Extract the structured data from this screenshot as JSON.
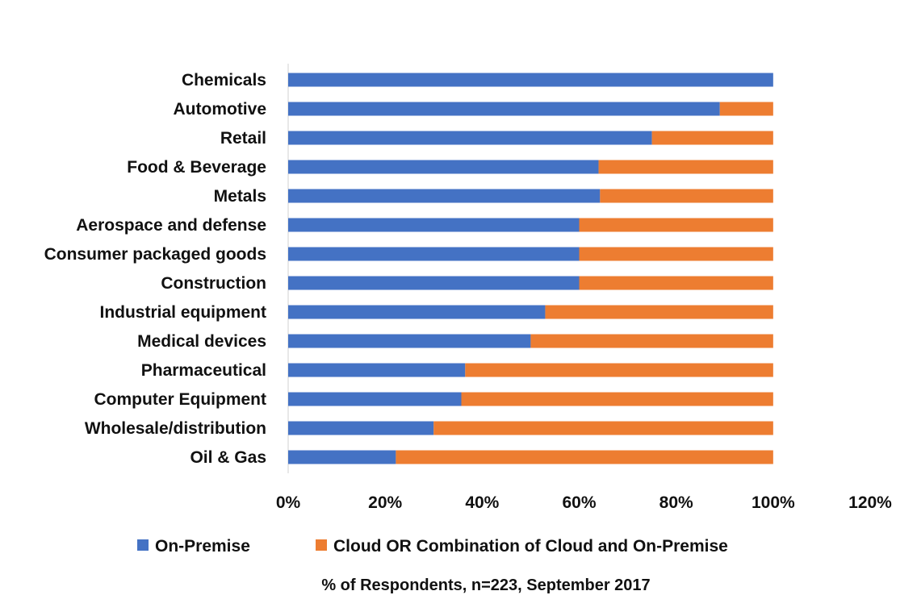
{
  "chart_data": {
    "type": "bar",
    "orientation": "horizontal",
    "stacked": true,
    "categories": [
      "Chemicals",
      "Automotive",
      "Retail",
      "Food & Beverage",
      "Metals",
      "Aerospace and defense",
      "Consumer packaged goods",
      "Construction",
      "Industrial equipment",
      "Medical devices",
      "Pharmaceutical",
      "Computer Equipment",
      "Wholesale/distribution",
      "Oil & Gas"
    ],
    "series": [
      {
        "name": "On-Premise",
        "color": "#4472C4",
        "values": [
          1.0,
          0.89,
          0.75,
          0.64,
          0.643,
          0.6,
          0.6,
          0.6,
          0.53,
          0.5,
          0.365,
          0.357,
          0.3,
          0.222
        ]
      },
      {
        "name": "Cloud OR Combination of Cloud and On-Premise",
        "color": "#ED7D31",
        "values": [
          0.0,
          0.11,
          0.25,
          0.36,
          0.357,
          0.4,
          0.4,
          0.4,
          0.47,
          0.5,
          0.635,
          0.643,
          0.7,
          0.778
        ]
      }
    ],
    "xlim": [
      0,
      1.2
    ],
    "xticks": [
      "0%",
      "20%",
      "40%",
      "60%",
      "80%",
      "100%",
      "120%"
    ],
    "xlabel": "% of Respondents, n=223, September 2017",
    "ylabel": "",
    "title": "",
    "grid": false,
    "legend": "bottom"
  }
}
